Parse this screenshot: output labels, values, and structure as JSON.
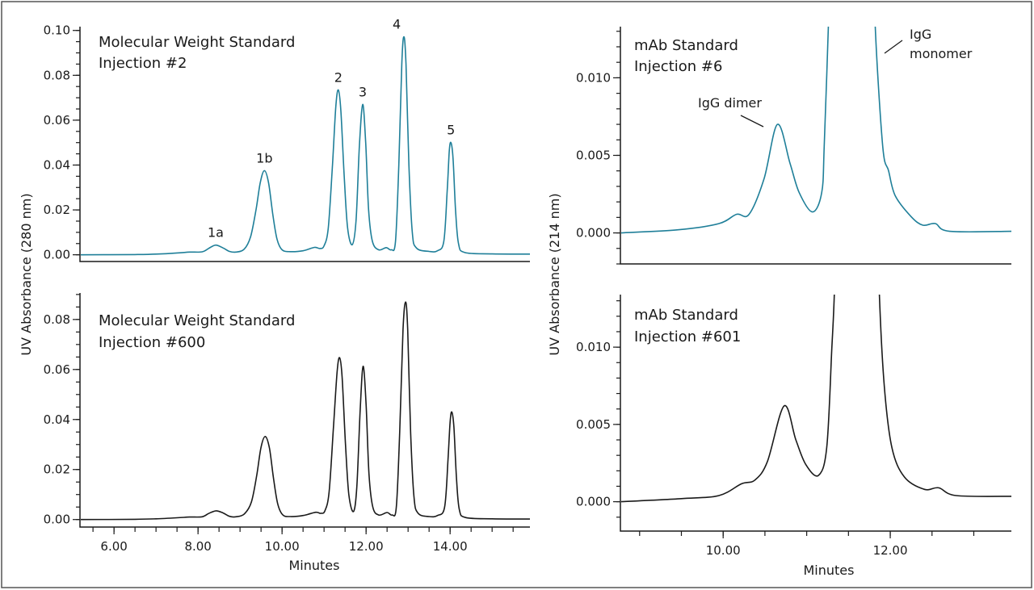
{
  "chart_data": [
    {
      "type": "line",
      "panel": "top-left",
      "title_lines": [
        "Molecular Weight Standard",
        "Injection #2"
      ],
      "xlabel": "",
      "ylabel": "UV Absorbance (280 nm)",
      "xlim": [
        5.19,
        15.9
      ],
      "ylim": [
        -0.003,
        0.1017
      ],
      "yticks": [
        "0.00",
        "0.02",
        "0.04",
        "0.06",
        "0.08",
        "0.10"
      ],
      "ytick_values": [
        0,
        0.02,
        0.04,
        0.06,
        0.08,
        0.1
      ],
      "xticks": [],
      "color": "#1f7f99",
      "grid": false,
      "peak_labels": [
        {
          "text": "1a",
          "x": 8.42,
          "y": 0.0043
        },
        {
          "text": "1b",
          "x": 9.58,
          "y": 0.0375
        },
        {
          "text": "2",
          "x": 11.34,
          "y": 0.0735
        },
        {
          "text": "3",
          "x": 11.92,
          "y": 0.067
        },
        {
          "text": "4",
          "x": 12.73,
          "y": 0.0972
        },
        {
          "text": "5",
          "x": 14.02,
          "y": 0.05
        }
      ],
      "series": [
        {
          "x": [
            5.2,
            6.5,
            7.0,
            7.5,
            7.8,
            8.1,
            8.25,
            8.42,
            8.6,
            8.75,
            8.9,
            9.1,
            9.25,
            9.38,
            9.48,
            9.58,
            9.68,
            9.78,
            9.88,
            10.0,
            10.2,
            10.5,
            10.77,
            10.9,
            11.0,
            11.1,
            11.2,
            11.28,
            11.34,
            11.4,
            11.48,
            11.56,
            11.67,
            11.76,
            11.84,
            11.92,
            11.99,
            12.06,
            12.15,
            12.3,
            12.48,
            12.6,
            12.7,
            12.78,
            12.85,
            12.9,
            12.95,
            13.02,
            13.1,
            13.2,
            13.5,
            13.7,
            13.85,
            13.93,
            13.98,
            14.02,
            14.07,
            14.13,
            14.2,
            14.35,
            15.0,
            15.9
          ],
          "y": [
            0.0,
            0.0001,
            0.0003,
            0.0008,
            0.0012,
            0.0013,
            0.0028,
            0.0043,
            0.003,
            0.0015,
            0.0012,
            0.0025,
            0.008,
            0.02,
            0.032,
            0.0375,
            0.032,
            0.018,
            0.007,
            0.0022,
            0.0014,
            0.0018,
            0.0033,
            0.0028,
            0.004,
            0.012,
            0.04,
            0.066,
            0.0735,
            0.064,
            0.035,
            0.012,
            0.0045,
            0.015,
            0.048,
            0.067,
            0.05,
            0.02,
            0.006,
            0.0022,
            0.0032,
            0.0022,
            0.006,
            0.04,
            0.085,
            0.0972,
            0.085,
            0.04,
            0.01,
            0.003,
            0.0015,
            0.0018,
            0.006,
            0.028,
            0.046,
            0.05,
            0.043,
            0.02,
            0.005,
            0.001,
            0.0004,
            0.0003
          ]
        }
      ]
    },
    {
      "type": "line",
      "panel": "bottom-left",
      "title_lines": [
        "Molecular Weight Standard",
        "Injection #600"
      ],
      "xlabel": "Minutes",
      "ylabel": "UV Absorbance (280 nm)",
      "xlim": [
        5.19,
        15.9
      ],
      "ylim": [
        -0.003,
        0.0906
      ],
      "yticks": [
        "0.00",
        "0.02",
        "0.04",
        "0.06",
        "0.08"
      ],
      "ytick_values": [
        0,
        0.02,
        0.04,
        0.06,
        0.08
      ],
      "xticks": [
        "6.00",
        "8.00",
        "10.00",
        "12.00",
        "14.00"
      ],
      "xtick_values": [
        6,
        8,
        10,
        12,
        14
      ],
      "color": "#1a1a1a",
      "grid": false,
      "series": [
        {
          "x": [
            5.2,
            6.5,
            7.0,
            7.5,
            7.8,
            8.1,
            8.25,
            8.43,
            8.6,
            8.75,
            8.9,
            9.1,
            9.27,
            9.4,
            9.5,
            9.6,
            9.7,
            9.8,
            9.9,
            10.02,
            10.2,
            10.5,
            10.8,
            10.92,
            11.02,
            11.12,
            11.22,
            11.31,
            11.37,
            11.43,
            11.51,
            11.59,
            11.7,
            11.78,
            11.86,
            11.93,
            12.0,
            12.07,
            12.16,
            12.3,
            12.5,
            12.62,
            12.72,
            12.8,
            12.88,
            12.94,
            12.99,
            13.06,
            13.14,
            13.24,
            13.5,
            13.7,
            13.87,
            13.95,
            14.0,
            14.04,
            14.09,
            14.15,
            14.22,
            14.37,
            15.0,
            15.9
          ],
          "y": [
            0.0,
            0.0001,
            0.0003,
            0.0007,
            0.001,
            0.0011,
            0.0024,
            0.0035,
            0.0026,
            0.0013,
            0.0011,
            0.0022,
            0.007,
            0.018,
            0.029,
            0.0332,
            0.0285,
            0.016,
            0.006,
            0.0018,
            0.0012,
            0.0016,
            0.0029,
            0.0025,
            0.0035,
            0.011,
            0.036,
            0.059,
            0.0647,
            0.057,
            0.03,
            0.01,
            0.0032,
            0.013,
            0.044,
            0.0613,
            0.046,
            0.018,
            0.005,
            0.0018,
            0.0028,
            0.0018,
            0.005,
            0.035,
            0.076,
            0.087,
            0.076,
            0.035,
            0.009,
            0.0025,
            0.0012,
            0.0016,
            0.005,
            0.024,
            0.039,
            0.043,
            0.037,
            0.017,
            0.004,
            0.0008,
            0.0003,
            0.0002
          ]
        }
      ]
    },
    {
      "type": "line",
      "panel": "top-right",
      "title_lines": [
        "mAb Standard",
        "Injection #6"
      ],
      "xlabel": "",
      "ylabel": "UV Absorbance (214 nm)",
      "xlim": [
        8.77,
        13.45
      ],
      "ylim": [
        -0.002,
        0.0133
      ],
      "yticks": [
        "0.000",
        "0.005",
        "0.010"
      ],
      "ytick_values": [
        0,
        0.005,
        0.01
      ],
      "xticks": [],
      "color": "#1f7f99",
      "grid": false,
      "annotations": [
        {
          "text": "IgG dimer"
        },
        {
          "text_lines": [
            "IgG",
            "monomer"
          ]
        }
      ],
      "series": [
        {
          "x": [
            8.77,
            9.46,
            9.95,
            10.16,
            10.31,
            10.49,
            10.65,
            10.8,
            10.91,
            11.07,
            11.18,
            11.21,
            11.26,
            11.3,
            11.8,
            11.82,
            11.91,
            11.98,
            12.06,
            12.25,
            12.39,
            12.54,
            12.71,
            13.45
          ],
          "y": [
            0.0,
            0.0002,
            0.0006,
            0.0012,
            0.0012,
            0.0035,
            0.007,
            0.0045,
            0.0026,
            0.00135,
            0.0026,
            0.0056,
            0.0134,
            0.02,
            0.02,
            0.0134,
            0.0056,
            0.004,
            0.0024,
            0.00105,
            0.0005,
            0.0006,
            0.0001,
            0.0001
          ]
        }
      ]
    },
    {
      "type": "line",
      "panel": "bottom-right",
      "title_lines": [
        "mAb Standard",
        "Injection #601"
      ],
      "xlabel": "Minutes",
      "ylabel": "UV Absorbance (214 nm)",
      "xlim": [
        8.77,
        13.45
      ],
      "ylim": [
        -0.0019,
        0.0134
      ],
      "yticks": [
        "0.000",
        "0.005",
        "0.010"
      ],
      "ytick_values": [
        0,
        0.005,
        0.01
      ],
      "xticks": [
        "10.00",
        "12.00"
      ],
      "xtick_values": [
        10,
        12
      ],
      "color": "#1a1a1a",
      "grid": false,
      "series": [
        {
          "x": [
            8.77,
            9.5,
            9.95,
            10.22,
            10.38,
            10.53,
            10.73,
            10.87,
            10.99,
            11.14,
            11.24,
            11.3,
            11.33,
            11.36,
            11.84,
            11.87,
            11.93,
            12.02,
            12.17,
            12.41,
            12.58,
            12.79,
            13.45
          ],
          "y": [
            0.0,
            0.0002,
            0.0004,
            0.00116,
            0.0014,
            0.0026,
            0.0062,
            0.004,
            0.0024,
            0.0017,
            0.0035,
            0.0098,
            0.0134,
            0.02,
            0.02,
            0.0134,
            0.0074,
            0.0035,
            0.0016,
            0.0008,
            0.0009,
            0.0004,
            0.00035
          ]
        }
      ]
    }
  ]
}
